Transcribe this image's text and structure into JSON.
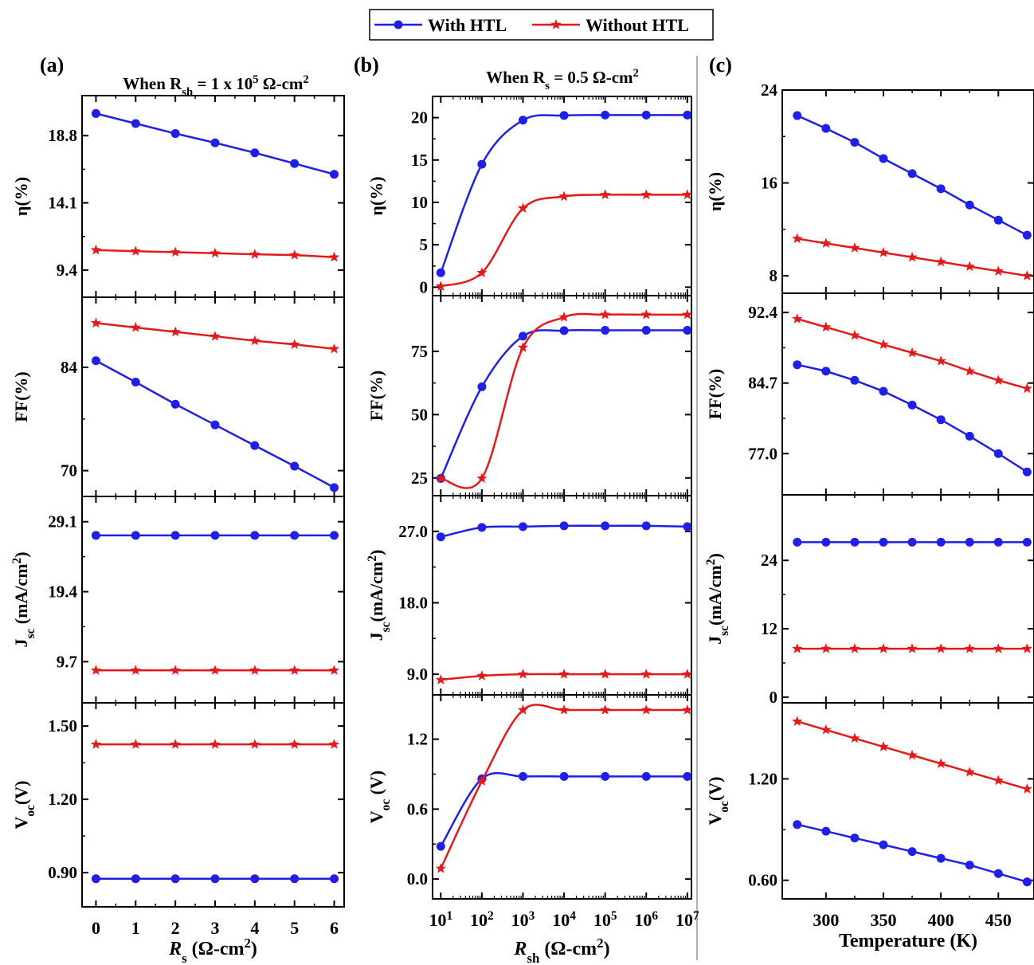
{
  "legend": {
    "with_label": "With HTL",
    "without_label": "Without HTL",
    "with_color": "#1f1fe6",
    "without_color": "#e31a1a"
  },
  "colors": {
    "with": "#1f1fe6",
    "without": "#e31a1a",
    "divider": "#b0b0b0"
  },
  "chart_data": [
    {
      "id": "a",
      "panel_label": "(a)",
      "title": {
        "pre": "When R",
        "sub": "sh",
        "mid": " = 1 x 10",
        "sup": "5",
        "post": " Ω-cm",
        "sup2": "2"
      },
      "type": "line",
      "xscale": "linear",
      "xlim": [
        -0.35,
        6.25
      ],
      "xticks": [
        0,
        1,
        2,
        3,
        4,
        5,
        6
      ],
      "xticklabels": [
        "0",
        "1",
        "2",
        "3",
        "4",
        "5",
        "6"
      ],
      "xlabel": {
        "main": "R",
        "sub": "s",
        "rest": " (Ω-cm",
        "sup": "2",
        "end": ")"
      },
      "subplots": [
        {
          "ylabel": {
            "main": "η(%)"
          },
          "ylim": [
            7.5,
            21.6
          ],
          "yticks": [
            9.4,
            14.1,
            18.8
          ],
          "yticklabels": [
            "9.4",
            "14.1",
            "18.8"
          ],
          "x": [
            0,
            1,
            2,
            3,
            4,
            5,
            6
          ],
          "series": [
            {
              "name": "With HTL",
              "values": [
                20.35,
                19.65,
                18.95,
                18.3,
                17.6,
                16.85,
                16.1
              ]
            },
            {
              "name": "Without HTL",
              "values": [
                10.8,
                10.72,
                10.65,
                10.58,
                10.5,
                10.45,
                10.3
              ]
            }
          ]
        },
        {
          "ylabel": {
            "main": "FF(%)"
          },
          "ylim": [
            66.5,
            93.5
          ],
          "yticks": [
            70,
            84
          ],
          "yticklabels": [
            "70",
            "84"
          ],
          "x": [
            0,
            1,
            2,
            3,
            4,
            5,
            6
          ],
          "series": [
            {
              "name": "With HTL",
              "values": [
                84.9,
                82.0,
                79.0,
                76.2,
                73.4,
                70.6,
                67.7
              ]
            },
            {
              "name": "Without HTL",
              "values": [
                90.0,
                89.4,
                88.8,
                88.2,
                87.6,
                87.1,
                86.5
              ]
            }
          ]
        },
        {
          "ylabel": {
            "main": "J",
            "sub": "sc",
            "rest": " (mA/cm",
            "sup": "2",
            "end": ")"
          },
          "ylim": [
            4.0,
            32.6
          ],
          "yticks": [
            9.7,
            19.4,
            29.1
          ],
          "yticklabels": [
            "9.7",
            "19.4",
            "29.1"
          ],
          "x": [
            0,
            1,
            2,
            3,
            4,
            5,
            6
          ],
          "series": [
            {
              "name": "With HTL",
              "values": [
                27.2,
                27.2,
                27.2,
                27.2,
                27.2,
                27.2,
                27.2
              ]
            },
            {
              "name": "Without HTL",
              "values": [
                8.5,
                8.5,
                8.5,
                8.5,
                8.5,
                8.5,
                8.5
              ]
            }
          ]
        },
        {
          "ylabel": {
            "main": "V",
            "sub": "oc",
            "rest": "(V)"
          },
          "ylim": [
            0.76,
            1.595
          ],
          "yticks": [
            0.9,
            1.2,
            1.5
          ],
          "yticklabels": [
            "0.90",
            "1.20",
            "1.50"
          ],
          "x": [
            0,
            1,
            2,
            3,
            4,
            5,
            6
          ],
          "series": [
            {
              "name": "With HTL",
              "values": [
                0.875,
                0.875,
                0.875,
                0.875,
                0.875,
                0.875,
                0.875
              ]
            },
            {
              "name": "Without HTL",
              "values": [
                1.425,
                1.425,
                1.425,
                1.425,
                1.425,
                1.425,
                1.425
              ]
            }
          ]
        }
      ]
    },
    {
      "id": "b",
      "panel_label": "(b)",
      "title": {
        "pre": "When R",
        "sub": "s",
        "mid": " = 0.5 Ω-cm",
        "sup": "2",
        "post": "",
        "sup2": ""
      },
      "type": "line",
      "xscale": "log",
      "xlim": [
        0.8,
        7.1
      ],
      "xticks": [
        1,
        2,
        3,
        4,
        5,
        6,
        7
      ],
      "xticklabels": [
        "10^1",
        "10^2",
        "10^3",
        "10^4",
        "10^5",
        "10^6",
        "10^7"
      ],
      "xlabel": {
        "main": "R",
        "sub": "sh",
        "rest": " (Ω-cm",
        "sup": "2",
        "end": ")"
      },
      "subplots": [
        {
          "ylabel": {
            "main": "η(%)"
          },
          "ylim": [
            -1.0,
            22.5
          ],
          "yticks": [
            0,
            5,
            10,
            15,
            20
          ],
          "yticklabels": [
            "0",
            "5",
            "10",
            "15",
            "20"
          ],
          "x": [
            1,
            2,
            3,
            4,
            5,
            6,
            7
          ],
          "series": [
            {
              "name": "With HTL",
              "values": [
                1.7,
                14.5,
                19.7,
                20.25,
                20.3,
                20.3,
                20.3
              ]
            },
            {
              "name": "Without HTL",
              "values": [
                0.1,
                1.7,
                9.3,
                10.7,
                10.9,
                10.9,
                10.9
              ]
            }
          ]
        },
        {
          "ylabel": {
            "main": "FF(%)"
          },
          "ylim": [
            18.0,
            97.0
          ],
          "yticks": [
            25,
            50,
            75
          ],
          "yticklabels": [
            "25",
            "50",
            "75"
          ],
          "x": [
            1,
            2,
            3,
            4,
            5,
            6,
            7
          ],
          "series": [
            {
              "name": "With HTL",
              "values": [
                24.8,
                61.0,
                81.0,
                83.2,
                83.3,
                83.3,
                83.3
              ]
            },
            {
              "name": "Without HTL",
              "values": [
                24.8,
                24.8,
                76.5,
                88.5,
                89.5,
                89.5,
                89.5
              ]
            }
          ]
        },
        {
          "ylabel": {
            "main": "J",
            "sub": "sc",
            "rest": "(mA/cm",
            "sup": "2",
            "end": ")"
          },
          "ylim": [
            6.4,
            31.5
          ],
          "yticks": [
            9.0,
            18.0,
            27.0
          ],
          "yticklabels": [
            "9.0",
            "18.0",
            "27.0"
          ],
          "x": [
            1,
            2,
            3,
            4,
            5,
            6,
            7
          ],
          "series": [
            {
              "name": "With HTL",
              "values": [
                26.3,
                27.5,
                27.6,
                27.7,
                27.7,
                27.7,
                27.6
              ]
            },
            {
              "name": "Without HTL",
              "values": [
                8.3,
                8.8,
                9.0,
                9.0,
                9.0,
                9.0,
                9.0
              ]
            }
          ]
        },
        {
          "ylabel": {
            "main": "V",
            "sub": "oc",
            "rest": " (V)"
          },
          "ylim": [
            -0.17,
            1.58
          ],
          "yticks": [
            0.0,
            0.6,
            1.2
          ],
          "yticklabels": [
            "0.0",
            "0.6",
            "1.2"
          ],
          "x": [
            1,
            2,
            3,
            4,
            5,
            6,
            7
          ],
          "series": [
            {
              "name": "With HTL",
              "values": [
                0.28,
                0.86,
                0.88,
                0.88,
                0.88,
                0.88,
                0.88
              ]
            },
            {
              "name": "Without HTL",
              "values": [
                0.09,
                0.84,
                1.45,
                1.45,
                1.45,
                1.45,
                1.45
              ]
            }
          ]
        }
      ]
    },
    {
      "id": "c",
      "panel_label": "(c)",
      "title": null,
      "type": "line",
      "xscale": "linear",
      "xlim": [
        262,
        481
      ],
      "xticks": [
        300,
        350,
        400,
        450
      ],
      "xticklabels": [
        "300",
        "350",
        "400",
        "450"
      ],
      "xlabel": {
        "main": "Temperature (K)"
      },
      "subplots": [
        {
          "ylabel": {
            "main": "η(%)"
          },
          "ylim": [
            6.5,
            24.0
          ],
          "yticks": [
            8,
            16,
            24
          ],
          "yticklabels": [
            "8",
            "16",
            "24"
          ],
          "x": [
            275,
            300,
            325,
            350,
            375,
            400,
            425,
            450,
            475
          ],
          "series": [
            {
              "name": "With HTL",
              "values": [
                21.8,
                20.7,
                19.5,
                18.1,
                16.8,
                15.5,
                14.1,
                12.8,
                11.5
              ]
            },
            {
              "name": "Without HTL",
              "values": [
                11.2,
                10.8,
                10.4,
                10.0,
                9.6,
                9.2,
                8.8,
                8.4,
                8.0
              ]
            }
          ]
        },
        {
          "ylabel": {
            "main": "FF(%)"
          },
          "ylim": [
            72.5,
            94.5
          ],
          "yticks": [
            77.0,
            84.7,
            92.4
          ],
          "yticklabels": [
            "77.0",
            "84.7",
            "92.4"
          ],
          "x": [
            275,
            300,
            325,
            350,
            375,
            400,
            425,
            450,
            475
          ],
          "series": [
            {
              "name": "With HTL",
              "values": [
                86.7,
                86.0,
                85.0,
                83.8,
                82.3,
                80.7,
                78.9,
                77.0,
                75.0
              ]
            },
            {
              "name": "Without HTL",
              "values": [
                91.7,
                90.8,
                89.9,
                88.9,
                88.0,
                87.1,
                86.0,
                85.0,
                84.1
              ]
            }
          ]
        },
        {
          "ylabel": {
            "main": "J",
            "sub": "sc",
            "rest": "(mA/cm",
            "sup": "2",
            "end": ")"
          },
          "ylim": [
            -1.0,
            35.5
          ],
          "yticks": [
            0,
            12,
            24
          ],
          "yticklabels": [
            "0",
            "12",
            "24"
          ],
          "x": [
            275,
            300,
            325,
            350,
            375,
            400,
            425,
            450,
            475
          ],
          "series": [
            {
              "name": "With HTL",
              "values": [
                27.2,
                27.2,
                27.2,
                27.2,
                27.2,
                27.2,
                27.2,
                27.2,
                27.2
              ]
            },
            {
              "name": "Without HTL",
              "values": [
                8.5,
                8.5,
                8.5,
                8.5,
                8.5,
                8.5,
                8.5,
                8.5,
                8.5
              ]
            }
          ]
        },
        {
          "ylabel": {
            "main": "V",
            "sub": "oc",
            "rest": "(V)"
          },
          "ylim": [
            0.49,
            1.65
          ],
          "yticks": [
            0.6,
            1.2
          ],
          "yticklabels": [
            "0.60",
            "1.20"
          ],
          "x": [
            275,
            300,
            325,
            350,
            375,
            400,
            425,
            450,
            475
          ],
          "series": [
            {
              "name": "With HTL",
              "values": [
                0.93,
                0.89,
                0.85,
                0.81,
                0.77,
                0.73,
                0.69,
                0.64,
                0.59
              ]
            },
            {
              "name": "Without HTL",
              "values": [
                1.54,
                1.49,
                1.44,
                1.39,
                1.34,
                1.29,
                1.24,
                1.19,
                1.14
              ]
            }
          ]
        }
      ]
    }
  ]
}
